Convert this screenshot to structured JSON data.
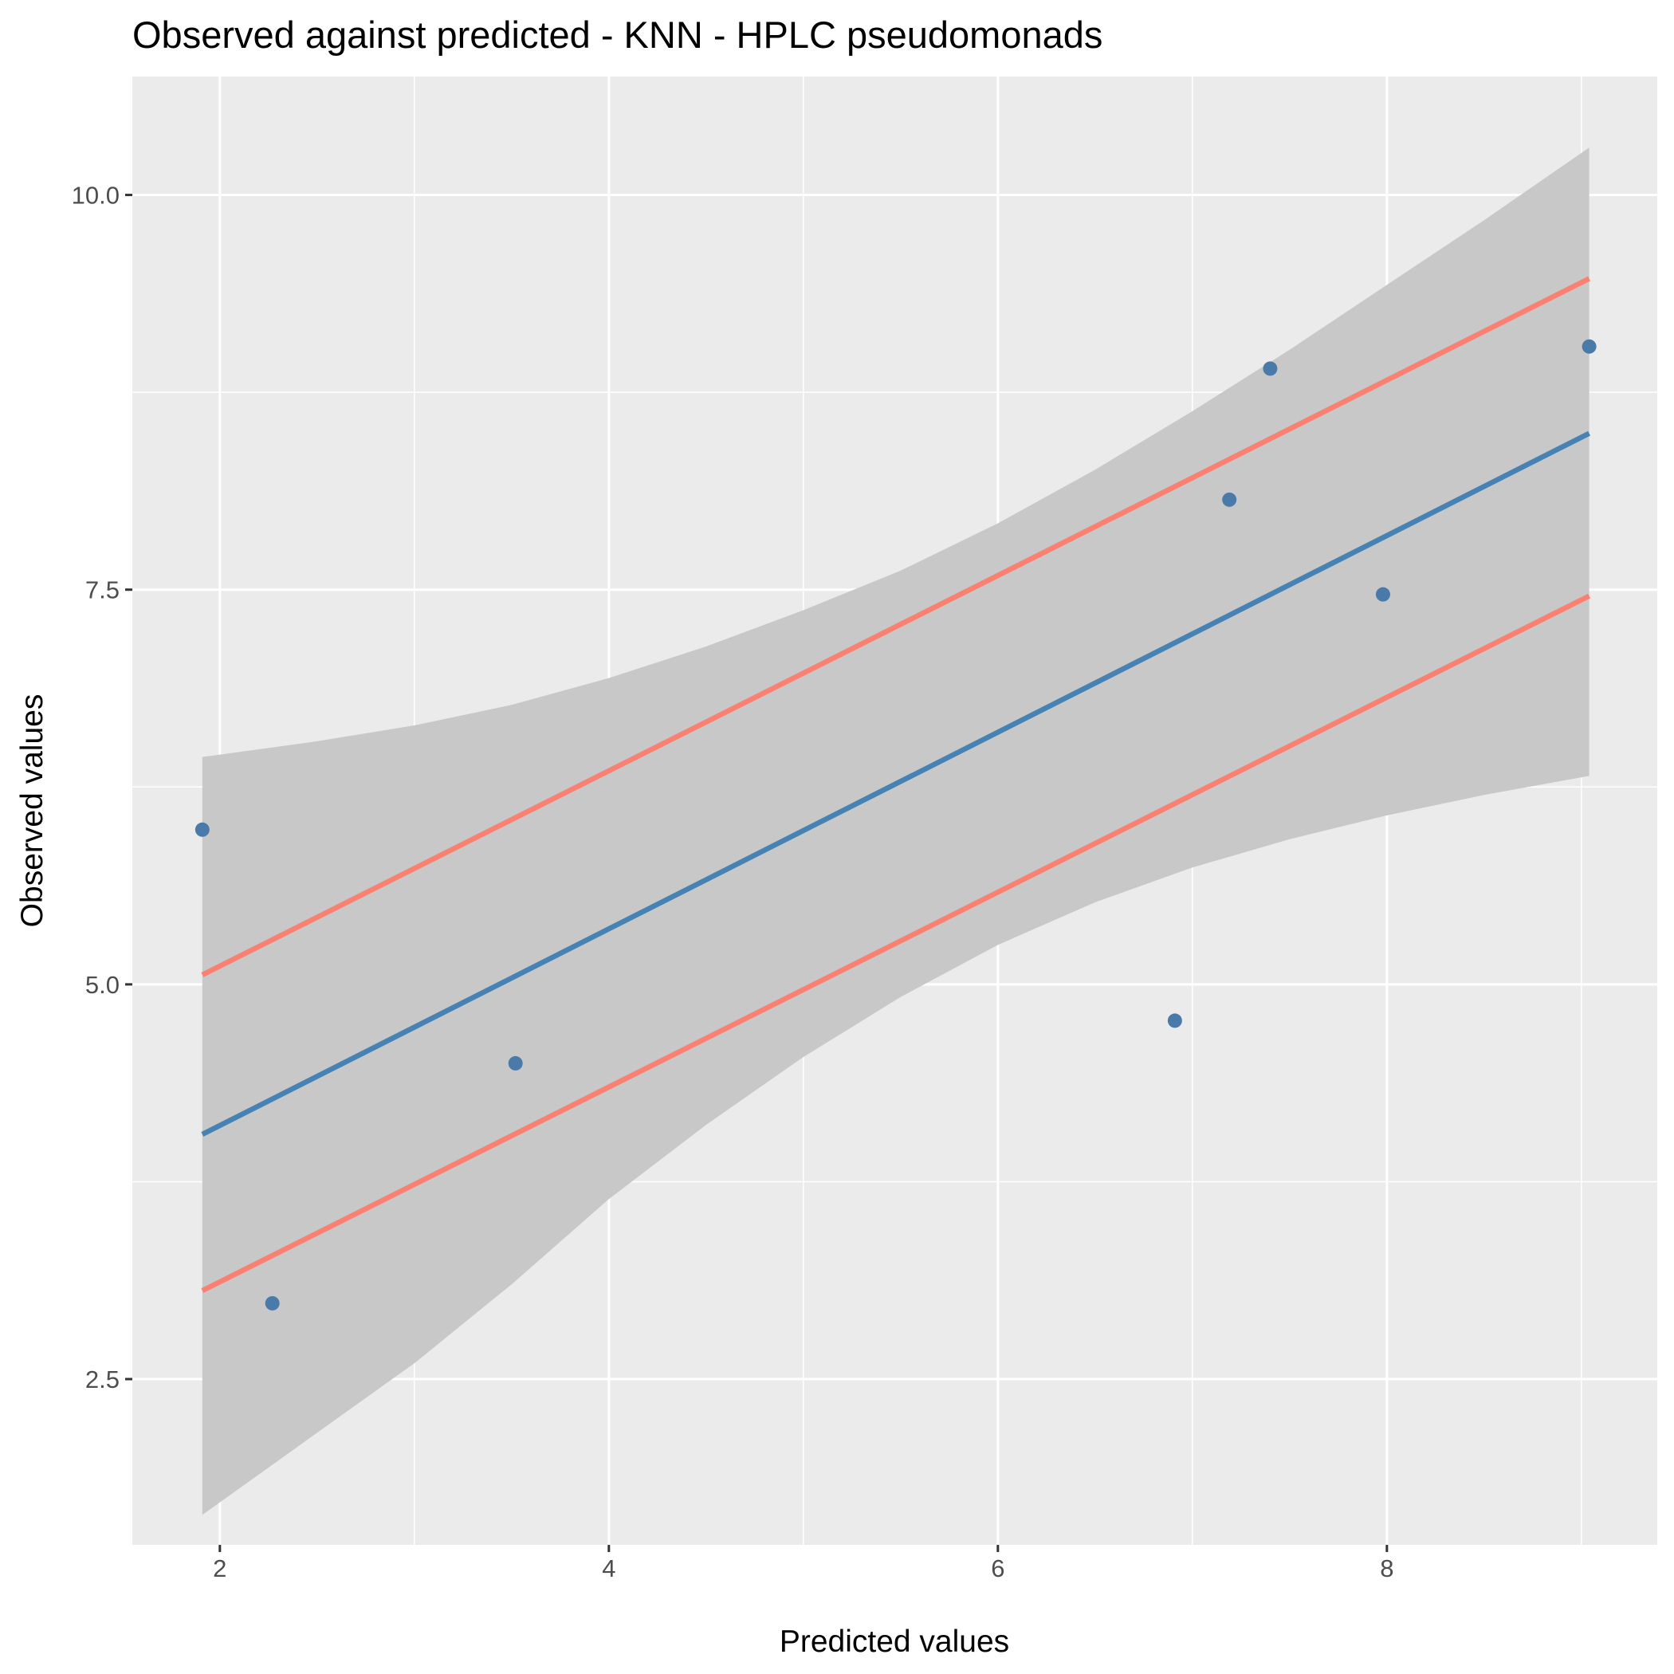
{
  "chart_data": {
    "type": "scatter",
    "title": "Observed against predicted - KNN - HPLC pseudomonads",
    "xlabel": "Predicted values",
    "ylabel": "Observed values",
    "xlim": [
      1.55,
      9.39
    ],
    "ylim": [
      1.45,
      10.75
    ],
    "x_ticks": [
      2,
      4,
      6,
      8
    ],
    "x_tick_labels": [
      "2",
      "4",
      "6",
      "8"
    ],
    "y_ticks": [
      2.5,
      5.0,
      7.5,
      10.0
    ],
    "y_tick_labels": [
      "2.5",
      "5.0",
      "7.5",
      "10.0"
    ],
    "grid": true,
    "points": [
      {
        "x": 1.91,
        "y": 5.98
      },
      {
        "x": 2.27,
        "y": 2.98
      },
      {
        "x": 3.52,
        "y": 4.5
      },
      {
        "x": 6.91,
        "y": 4.77
      },
      {
        "x": 7.19,
        "y": 8.07
      },
      {
        "x": 7.4,
        "y": 8.9
      },
      {
        "x": 7.98,
        "y": 7.47
      },
      {
        "x": 9.04,
        "y": 9.04
      }
    ],
    "fit_line": {
      "x": [
        1.91,
        9.04
      ],
      "y": [
        4.05,
        8.49
      ]
    },
    "prediction_bounds": {
      "upper": {
        "x": [
          1.91,
          9.04
        ],
        "y": [
          5.06,
          9.47
        ]
      },
      "lower": {
        "x": [
          1.91,
          9.04
        ],
        "y": [
          3.06,
          7.46
        ]
      }
    },
    "confidence_band": {
      "x": [
        1.91,
        2.5,
        3.0,
        3.5,
        4.0,
        4.5,
        5.0,
        5.5,
        6.0,
        6.5,
        7.0,
        7.5,
        8.0,
        8.5,
        9.04
      ],
      "upper": [
        6.44,
        6.54,
        6.64,
        6.77,
        6.94,
        7.14,
        7.37,
        7.62,
        7.92,
        8.26,
        8.63,
        9.02,
        9.43,
        9.84,
        10.3
      ],
      "lower": [
        1.64,
        2.16,
        2.6,
        3.1,
        3.64,
        4.11,
        4.54,
        4.92,
        5.25,
        5.52,
        5.74,
        5.92,
        6.07,
        6.2,
        6.32
      ]
    },
    "colors": {
      "panel": "#ebebeb",
      "grid": "#ffffff",
      "band": "#c8c8c8",
      "fit": "#4682b4",
      "bounds": "#fa8072",
      "points": "#4a7aaa"
    }
  }
}
